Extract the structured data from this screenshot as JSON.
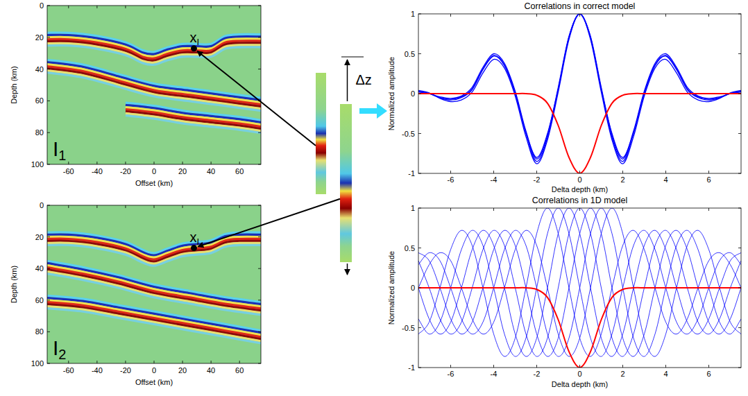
{
  "chart_data": [
    {
      "type": "image",
      "label": "I",
      "label_sub": "1",
      "xlabel": "Offset (km)",
      "ylabel": "Depth (km)",
      "xlim": [
        -75,
        75
      ],
      "ylim": [
        100,
        0
      ],
      "xticks": [
        -60,
        -40,
        -20,
        0,
        20,
        40,
        60
      ],
      "yticks": [
        0,
        20,
        40,
        60,
        80,
        100
      ],
      "point": {
        "x": 28,
        "y": 27,
        "label": "x",
        "label_sub": "I"
      },
      "reflectors": [
        {
          "x": [
            -75,
            -60,
            -40,
            -20,
            -8,
            0,
            10,
            20,
            30,
            40,
            50,
            60,
            75
          ],
          "y": [
            20,
            20,
            22,
            26,
            31,
            32,
            29,
            27,
            27,
            27,
            22,
            21,
            21
          ]
        },
        {
          "x": [
            -75,
            -50,
            -25,
            0,
            25,
            50,
            75
          ],
          "y": [
            37,
            40,
            46,
            52,
            55,
            58,
            61
          ]
        },
        {
          "x": [
            -20,
            0,
            20,
            40,
            60,
            75
          ],
          "y": [
            64,
            66,
            69,
            71,
            73,
            75
          ]
        }
      ]
    },
    {
      "type": "image",
      "label": "I",
      "label_sub": "2",
      "xlabel": "Offset (km)",
      "ylabel": "Depth (km)",
      "xlim": [
        -75,
        75
      ],
      "ylim": [
        100,
        0
      ],
      "xticks": [
        -60,
        -40,
        -20,
        0,
        20,
        40,
        60
      ],
      "yticks": [
        0,
        20,
        40,
        60,
        80,
        100
      ],
      "point": {
        "x": 28,
        "y": 27,
        "label": "x",
        "label_sub": "I"
      },
      "reflectors": [
        {
          "x": [
            -75,
            -60,
            -40,
            -20,
            -8,
            0,
            10,
            20,
            30,
            40,
            50,
            60,
            75
          ],
          "y": [
            20,
            20,
            22,
            26,
            31,
            33,
            30,
            27,
            26,
            25,
            21,
            20,
            20
          ]
        },
        {
          "x": [
            -75,
            -50,
            -25,
            0,
            25,
            50,
            75
          ],
          "y": [
            38,
            42,
            47,
            53,
            57,
            61,
            64
          ]
        },
        {
          "x": [
            -75,
            -50,
            -25,
            0,
            25,
            50,
            75
          ],
          "y": [
            60,
            62,
            66,
            70,
            74,
            78,
            82
          ]
        }
      ]
    },
    {
      "type": "line",
      "title": "Correlations in correct model",
      "xlabel": "Delta depth (km)",
      "ylabel": "Normalized amplitude",
      "xlim": [
        -7.5,
        7.5
      ],
      "ylim": [
        -1,
        1
      ],
      "xticks": [
        -6,
        -4,
        -2,
        0,
        2,
        4,
        6
      ],
      "yticks": [
        -1,
        -0.5,
        0,
        0.5,
        1
      ],
      "x": [
        -7.5,
        -7,
        -6.5,
        -6,
        -5.5,
        -5,
        -4.5,
        -4,
        -3.5,
        -3,
        -2.5,
        -2,
        -1.5,
        -1,
        -0.5,
        0,
        0.5,
        1,
        1.5,
        2,
        2.5,
        3,
        3.5,
        4,
        4.5,
        5,
        5.5,
        6,
        6.5,
        7,
        7.5
      ],
      "series": [
        {
          "color": "#0000ff",
          "values": [
            0.03,
            0,
            -0.05,
            -0.08,
            -0.05,
            0.05,
            0.3,
            0.47,
            0.35,
            0,
            -0.5,
            -0.85,
            -0.55,
            0.05,
            0.7,
            1,
            0.7,
            0.05,
            -0.55,
            -0.85,
            -0.5,
            0,
            0.35,
            0.47,
            0.3,
            0.05,
            -0.05,
            -0.08,
            -0.05,
            0,
            0.03
          ]
        },
        {
          "color": "#0000ff",
          "values": [
            0.02,
            0,
            -0.04,
            -0.06,
            -0.03,
            0.08,
            0.33,
            0.5,
            0.38,
            0.03,
            -0.47,
            -0.82,
            -0.52,
            0.08,
            0.72,
            1,
            0.72,
            0.08,
            -0.52,
            -0.82,
            -0.47,
            0.03,
            0.38,
            0.5,
            0.33,
            0.08,
            -0.03,
            -0.06,
            -0.04,
            0,
            0.02
          ]
        },
        {
          "color": "#0000ff",
          "values": [
            0.04,
            0.01,
            -0.06,
            -0.1,
            -0.08,
            0.02,
            0.26,
            0.43,
            0.32,
            -0.03,
            -0.54,
            -0.88,
            -0.58,
            0.02,
            0.68,
            1,
            0.68,
            0.02,
            -0.58,
            -0.88,
            -0.54,
            -0.03,
            0.32,
            0.43,
            0.26,
            0.02,
            -0.08,
            -0.1,
            -0.06,
            0.01,
            0.04
          ]
        },
        {
          "color": "#0000ff",
          "values": [
            0.03,
            0,
            -0.05,
            -0.07,
            -0.04,
            0.06,
            0.31,
            0.48,
            0.36,
            0.01,
            -0.49,
            -0.8,
            -0.5,
            0.06,
            0.71,
            1,
            0.71,
            0.06,
            -0.5,
            -0.8,
            -0.49,
            0.01,
            0.36,
            0.48,
            0.31,
            0.06,
            -0.04,
            -0.07,
            -0.05,
            0,
            0.03
          ]
        },
        {
          "color": "#ff0000",
          "values": [
            0,
            0,
            0,
            0,
            0,
            0,
            0,
            0,
            0,
            0,
            0,
            -0.02,
            -0.12,
            -0.4,
            -0.8,
            -1,
            -0.8,
            -0.4,
            -0.12,
            -0.02,
            0,
            0,
            0,
            0,
            0,
            0,
            0,
            0,
            0,
            0,
            0
          ]
        }
      ]
    },
    {
      "type": "line",
      "title": "Correlations in 1D model",
      "xlabel": "Delta depth (km)",
      "ylabel": "Normalized amplitude",
      "xlim": [
        -7.5,
        7.5
      ],
      "ylim": [
        -1,
        1
      ],
      "xticks": [
        -6,
        -4,
        -2,
        0,
        2,
        4,
        6
      ],
      "yticks": [
        -1,
        -0.5,
        0,
        0.5,
        1
      ],
      "x": [
        -7.5,
        -7,
        -6.5,
        -6,
        -5.5,
        -5,
        -4.5,
        -4,
        -3.5,
        -3,
        -2.5,
        -2,
        -1.5,
        -1,
        -0.5,
        0,
        0.5,
        1,
        1.5,
        2,
        2.5,
        3,
        3.5,
        4,
        4.5,
        5,
        5.5,
        6,
        6.5,
        7,
        7.5
      ],
      "series": [
        {
          "color": "#0000ff",
          "values": [
            0.34,
            0,
            -0.39,
            -0.58,
            -0.43,
            0,
            0.48,
            0.72,
            0.53,
            0,
            -0.58,
            -0.86,
            -0.63,
            0,
            0.68,
            1,
            0.68,
            0,
            -0.63,
            -0.86,
            -0.58,
            0,
            0.53,
            0.72,
            0.48,
            0,
            -0.43,
            -0.58,
            -0.39,
            0,
            0.34
          ]
        },
        {
          "color": "#0000ff",
          "values": [
            0.29,
            0.44,
            0.34,
            0,
            -0.39,
            -0.58,
            -0.43,
            0,
            0.48,
            0.72,
            0.53,
            0,
            -0.58,
            -0.86,
            -0.63,
            0,
            0.68,
            1,
            0.68,
            0,
            -0.63,
            -0.86,
            -0.58,
            0,
            0.53,
            0.72,
            0.48,
            0,
            -0.43,
            -0.58,
            -0.39
          ]
        },
        {
          "color": "#0000ff",
          "values": [
            -0.39,
            -0.58,
            -0.43,
            0,
            0.48,
            0.72,
            0.53,
            0,
            -0.58,
            -0.86,
            -0.63,
            0,
            0.68,
            1,
            0.68,
            0,
            -0.63,
            -0.86,
            -0.58,
            0,
            0.53,
            0.72,
            0.48,
            0,
            -0.43,
            -0.58,
            -0.39,
            0,
            0.34,
            0.44,
            0.29
          ]
        },
        {
          "color": "#0000ff",
          "values": [
            0.44,
            0.34,
            0,
            -0.39,
            -0.58,
            -0.43,
            0,
            0.48,
            0.72,
            0.53,
            0,
            -0.58,
            -0.86,
            -0.63,
            0,
            0.68,
            1,
            0.68,
            0,
            -0.63,
            -0.86,
            -0.58,
            0,
            0.53,
            0.72,
            0.48,
            0,
            -0.43,
            -0.58,
            -0.39,
            0
          ]
        },
        {
          "color": "#0000ff",
          "values": [
            0,
            -0.39,
            -0.58,
            -0.43,
            0,
            0.48,
            0.72,
            0.53,
            0,
            -0.58,
            -0.86,
            -0.63,
            0,
            0.68,
            1,
            0.68,
            0,
            -0.63,
            -0.86,
            -0.58,
            0,
            0.53,
            0.72,
            0.48,
            0,
            -0.43,
            -0.58,
            -0.39,
            0,
            0.34,
            0.44
          ]
        },
        {
          "color": "#0000ff",
          "values": [
            0,
            0.29,
            0.44,
            0.34,
            0,
            -0.39,
            -0.58,
            -0.43,
            0,
            0.48,
            0.72,
            0.53,
            0,
            -0.58,
            -0.86,
            -0.63,
            0,
            0.68,
            1,
            0.68,
            0,
            -0.63,
            -0.86,
            -0.58,
            0,
            0.53,
            0.72,
            0.48,
            0,
            -0.43,
            -0.58
          ]
        },
        {
          "color": "#0000ff",
          "values": [
            -0.58,
            -0.43,
            0,
            0.48,
            0.72,
            0.53,
            0,
            -0.58,
            -0.86,
            -0.63,
            0,
            0.68,
            1,
            0.68,
            0,
            -0.63,
            -0.86,
            -0.58,
            0,
            0.53,
            0.72,
            0.48,
            0,
            -0.43,
            -0.58,
            -0.39,
            0,
            0.34,
            0.44,
            0.29,
            0
          ]
        },
        {
          "color": "#ff0000",
          "values": [
            0,
            0,
            0,
            0,
            0,
            0,
            0,
            0,
            0,
            0,
            0,
            -0.02,
            -0.12,
            -0.4,
            -0.8,
            -1,
            -0.8,
            -0.4,
            -0.12,
            -0.02,
            0,
            0,
            0,
            0,
            0,
            0,
            0,
            0,
            0,
            0,
            0
          ]
        }
      ]
    }
  ],
  "figure": {
    "shift_label": "Δz"
  }
}
